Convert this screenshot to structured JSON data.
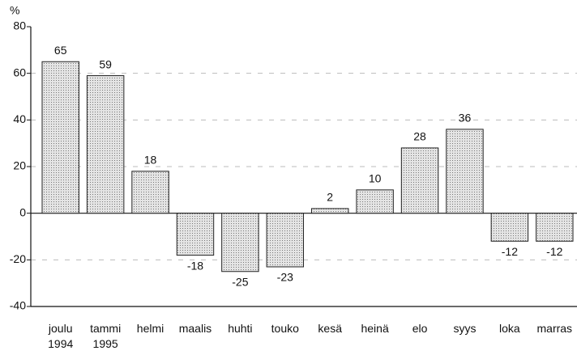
{
  "chart_data": {
    "type": "bar",
    "y_label": "%",
    "categories": [
      "joulu\n1994",
      "tammi\n1995",
      "helmi",
      "maalis",
      "huhti",
      "touko",
      "kesä",
      "heinä",
      "elo",
      "syys",
      "loka",
      "marras"
    ],
    "values": [
      65,
      59,
      18,
      -18,
      -25,
      -23,
      2,
      10,
      28,
      36,
      -12,
      -12
    ],
    "color": "#c8c8c8",
    "ylim": [
      -40,
      80
    ],
    "yticks": [
      -40,
      -20,
      0,
      20,
      40,
      60,
      80
    ],
    "grid": true
  }
}
